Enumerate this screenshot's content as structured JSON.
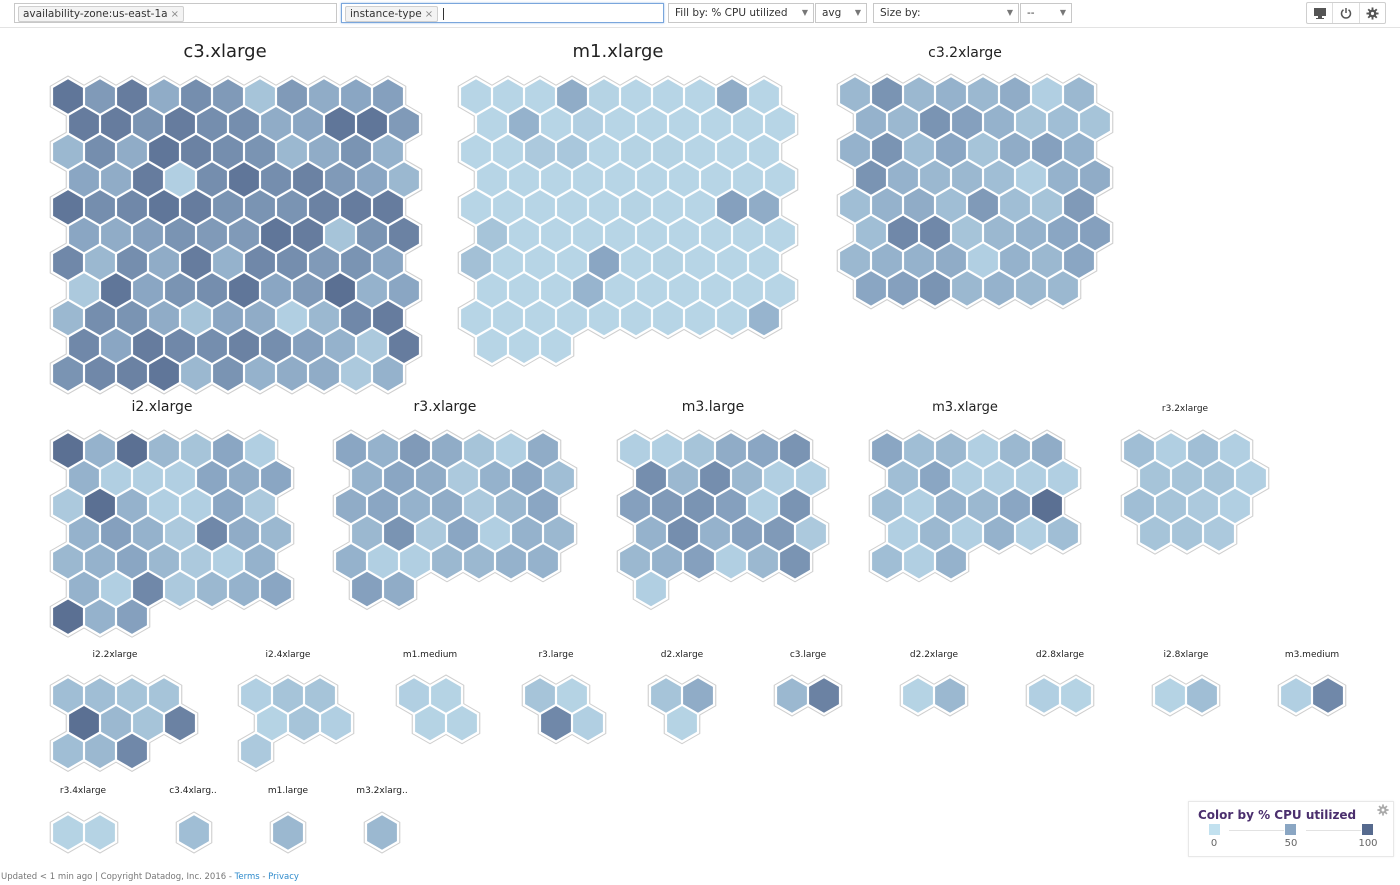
{
  "toolbar": {
    "filter_tag": "availability-zone:us-east-1a",
    "group_tag": "instance-type",
    "remove_glyph": "×",
    "fill_by": "Fill by: % CPU utilized",
    "fill_agg": "avg",
    "size_by": "Size by:",
    "size_agg": "--",
    "icons": [
      "monitor-icon",
      "power-icon",
      "gear-icon"
    ]
  },
  "color_scale": {
    "low": "#c2e1ef",
    "mid": "#8aa6c3",
    "high": "#566a8e"
  },
  "groups": [
    {
      "name": "c3.xlarge",
      "rows": [
        [
          90,
          60,
          85,
          45,
          70,
          60,
          25,
          60,
          45,
          50,
          55
        ],
        [
          85,
          85,
          65,
          85,
          70,
          70,
          45,
          50,
          90,
          90,
          60
        ],
        [
          35,
          70,
          45,
          90,
          80,
          70,
          65,
          35,
          45,
          65,
          40
        ],
        [
          50,
          45,
          85,
          15,
          70,
          90,
          70,
          80,
          60,
          50,
          35
        ],
        [
          90,
          70,
          75,
          90,
          85,
          65,
          65,
          65,
          80,
          85,
          85
        ],
        [
          50,
          45,
          55,
          65,
          60,
          60,
          90,
          85,
          25,
          65,
          80
        ],
        [
          75,
          35,
          70,
          45,
          85,
          40,
          75,
          70,
          60,
          65,
          50
        ],
        [
          20,
          90,
          50,
          65,
          70,
          90,
          50,
          60,
          95,
          40,
          50
        ],
        [
          35,
          70,
          65,
          45,
          25,
          50,
          45,
          15,
          35,
          75,
          85
        ],
        [
          75,
          50,
          85,
          75,
          70,
          80,
          70,
          55,
          40,
          20,
          85
        ],
        [
          65,
          75,
          80,
          90,
          35,
          65,
          40,
          45,
          45,
          20,
          40
        ]
      ]
    },
    {
      "name": "m1.xlarge",
      "rows": [
        [
          10,
          10,
          10,
          45,
          12,
          10,
          10,
          10,
          45,
          10
        ],
        [
          10,
          40,
          10,
          15,
          10,
          10,
          10,
          10,
          10,
          10
        ],
        [
          10,
          10,
          20,
          22,
          10,
          12,
          12,
          10,
          10,
          10
        ],
        [
          10,
          10,
          10,
          10,
          10,
          10,
          10,
          10,
          10,
          10
        ],
        [
          10,
          10,
          10,
          10,
          10,
          12,
          10,
          10,
          55,
          45
        ],
        [
          25,
          10,
          10,
          10,
          10,
          10,
          10,
          10,
          10,
          10
        ],
        [
          28,
          10,
          10,
          10,
          50,
          10,
          12,
          10,
          10,
          10
        ],
        [
          10,
          10,
          10,
          38,
          10,
          10,
          10,
          10,
          10,
          10
        ],
        [
          10,
          10,
          10,
          10,
          10,
          10,
          10,
          10,
          10,
          38
        ],
        [
          10,
          10,
          10
        ]
      ]
    },
    {
      "name": "c3.2xlarge",
      "rows": [
        [
          35,
          65,
          35,
          40,
          35,
          45,
          15,
          35
        ],
        [
          40,
          35,
          65,
          55,
          40,
          25,
          30,
          25
        ],
        [
          40,
          65,
          30,
          50,
          25,
          45,
          55,
          40
        ],
        [
          65,
          40,
          35,
          35,
          30,
          15,
          40,
          45
        ],
        [
          30,
          40,
          45,
          30,
          60,
          30,
          25,
          60
        ],
        [
          30,
          75,
          75,
          25,
          35,
          40,
          50,
          55
        ],
        [
          35,
          40,
          40,
          45,
          15,
          40,
          35,
          50
        ],
        [
          50,
          55,
          65,
          35,
          40,
          35,
          35
        ]
      ]
    },
    {
      "name": "i2.xlarge",
      "rows": [
        [
          95,
          40,
          95,
          35,
          25,
          50,
          15
        ],
        [
          40,
          15,
          15,
          15,
          50,
          45,
          50
        ],
        [
          20,
          95,
          40,
          15,
          15,
          50,
          20
        ],
        [
          40,
          55,
          40,
          20,
          75,
          45,
          35
        ],
        [
          35,
          40,
          50,
          35,
          20,
          15,
          40
        ],
        [
          40,
          15,
          75,
          20,
          35,
          40,
          50
        ],
        [
          95,
          40,
          55
        ]
      ]
    },
    {
      "name": "r3.xlarge",
      "rows": [
        [
          50,
          40,
          60,
          45,
          25,
          15,
          45
        ],
        [
          40,
          50,
          45,
          20,
          40,
          50,
          30
        ],
        [
          45,
          50,
          40,
          45,
          20,
          35,
          50
        ],
        [
          35,
          65,
          20,
          50,
          15,
          40,
          35
        ],
        [
          40,
          15,
          15,
          35,
          35,
          40,
          40
        ],
        [
          55,
          45
        ]
      ]
    },
    {
      "name": "m3.large",
      "rows": [
        [
          15,
          15,
          25,
          45,
          50,
          65
        ],
        [
          70,
          35,
          70,
          35,
          15,
          15
        ],
        [
          55,
          60,
          65,
          55,
          15,
          65
        ],
        [
          40,
          70,
          40,
          55,
          60,
          20
        ],
        [
          35,
          40,
          55,
          15,
          35,
          65
        ],
        [
          15
        ]
      ]
    },
    {
      "name": "m3.xlarge",
      "rows": [
        [
          50,
          30,
          35,
          15,
          35,
          45
        ],
        [
          30,
          50,
          15,
          15,
          15,
          15
        ],
        [
          30,
          15,
          40,
          35,
          50,
          95
        ],
        [
          15,
          35,
          15,
          40,
          15,
          30
        ],
        [
          30,
          15,
          40
        ]
      ]
    },
    {
      "name": "r3.2xlarge",
      "rows": [
        [
          30,
          15,
          30,
          15
        ],
        [
          25,
          25,
          25,
          15
        ],
        [
          30,
          25,
          20,
          15
        ],
        [
          25,
          25,
          20
        ]
      ]
    },
    {
      "name": "i2.2xlarge",
      "rows": [
        [
          30,
          30,
          25,
          25
        ],
        [
          95,
          35,
          25,
          80
        ],
        [
          30,
          35,
          75
        ]
      ]
    },
    {
      "name": "i2.4xlarge",
      "rows": [
        [
          15,
          25,
          25
        ],
        [
          12,
          25,
          15
        ],
        [
          20
        ]
      ]
    },
    {
      "name": "m1.medium",
      "rows": [
        [
          15,
          12
        ],
        [
          12,
          12
        ]
      ]
    },
    {
      "name": "r3.large",
      "rows": [
        [
          25,
          12
        ],
        [
          75,
          15
        ]
      ]
    },
    {
      "name": "d2.xlarge",
      "rows": [
        [
          25,
          45
        ],
        [
          12
        ]
      ]
    },
    {
      "name": "c3.large",
      "rows": [
        [
          35,
          80
        ]
      ]
    },
    {
      "name": "d2.2xlarge",
      "rows": [
        [
          12,
          35
        ]
      ]
    },
    {
      "name": "d2.8xlarge",
      "rows": [
        [
          15,
          12
        ]
      ]
    },
    {
      "name": "i2.8xlarge",
      "rows": [
        [
          12,
          30
        ]
      ]
    },
    {
      "name": "m3.medium",
      "rows": [
        [
          15,
          75
        ]
      ]
    },
    {
      "name": "r3.4xlarge",
      "rows": [
        [
          12,
          12
        ]
      ]
    },
    {
      "name": "c3.4xlarg..",
      "rows": [
        [
          30
        ]
      ]
    },
    {
      "name": "m1.large",
      "rows": [
        [
          35
        ]
      ]
    },
    {
      "name": "m3.2xlarg..",
      "rows": [
        [
          35
        ]
      ]
    }
  ],
  "legend": {
    "title": "Color by % CPU utilized",
    "stops": [
      {
        "label": "0",
        "color": "#c2e1ef"
      },
      {
        "label": "50",
        "color": "#8aa6c3"
      },
      {
        "label": "100",
        "color": "#566a8e"
      }
    ]
  },
  "footer": {
    "updated": "Updated < 1 min ago",
    "copyright": "| Copyright Datadog, Inc. 2016 -",
    "terms": "Terms",
    "sep": "-",
    "privacy": "Privacy"
  }
}
